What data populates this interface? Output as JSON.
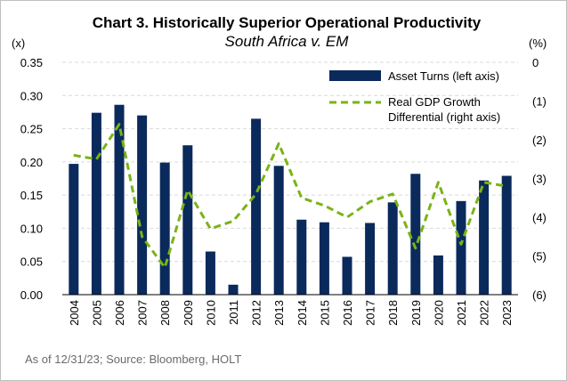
{
  "chart_data": {
    "type": "bar",
    "title": "Chart 3. Historically Superior Operational Productivity",
    "subtitle": "South Africa v. EM",
    "left_unit": "(x)",
    "right_unit": "(%)",
    "categories": [
      "2004",
      "2005",
      "2006",
      "2007",
      "2008",
      "2009",
      "2010",
      "2011",
      "2012",
      "2013",
      "2014",
      "2015",
      "2016",
      "2017",
      "2018",
      "2019",
      "2020",
      "2021",
      "2022",
      "2023"
    ],
    "series": [
      {
        "name": "Asset Turns (left axis)",
        "type": "bar",
        "axis": "left",
        "color": "#0a2a5c",
        "values": [
          0.197,
          0.274,
          0.286,
          0.27,
          0.199,
          0.225,
          0.065,
          0.015,
          0.265,
          0.194,
          0.113,
          0.109,
          0.057,
          0.108,
          0.139,
          0.182,
          0.059,
          0.141,
          0.172,
          0.179
        ]
      },
      {
        "name": "Real GDP Growth Differential (right axis)",
        "legend_lines": [
          "Real GDP Growth",
          "Differential (right axis)"
        ],
        "type": "line",
        "style": "dashed",
        "axis": "right",
        "color": "#7ab317",
        "values": [
          -2.4,
          -2.5,
          -1.6,
          -4.5,
          -5.3,
          -3.3,
          -4.3,
          -4.1,
          -3.4,
          -2.1,
          -3.5,
          -3.7,
          -4.0,
          -3.6,
          -3.4,
          -4.8,
          -3.1,
          -4.7,
          -3.1,
          -3.2
        ]
      }
    ],
    "left_axis": {
      "min": 0,
      "max": 0.35,
      "step": 0.05,
      "tick_labels": [
        "0.00",
        "0.05",
        "0.10",
        "0.15",
        "0.20",
        "0.25",
        "0.30",
        "0.35"
      ]
    },
    "right_axis": {
      "min": -6,
      "max": 0,
      "step": 1,
      "tick_labels": [
        "(6)",
        "(5)",
        "(4)",
        "(3)",
        "(2)",
        "(1)",
        "0"
      ]
    },
    "grid": true,
    "legend_position": "top-right",
    "source": "As of 12/31/23; Source: Bloomberg, HOLT"
  }
}
